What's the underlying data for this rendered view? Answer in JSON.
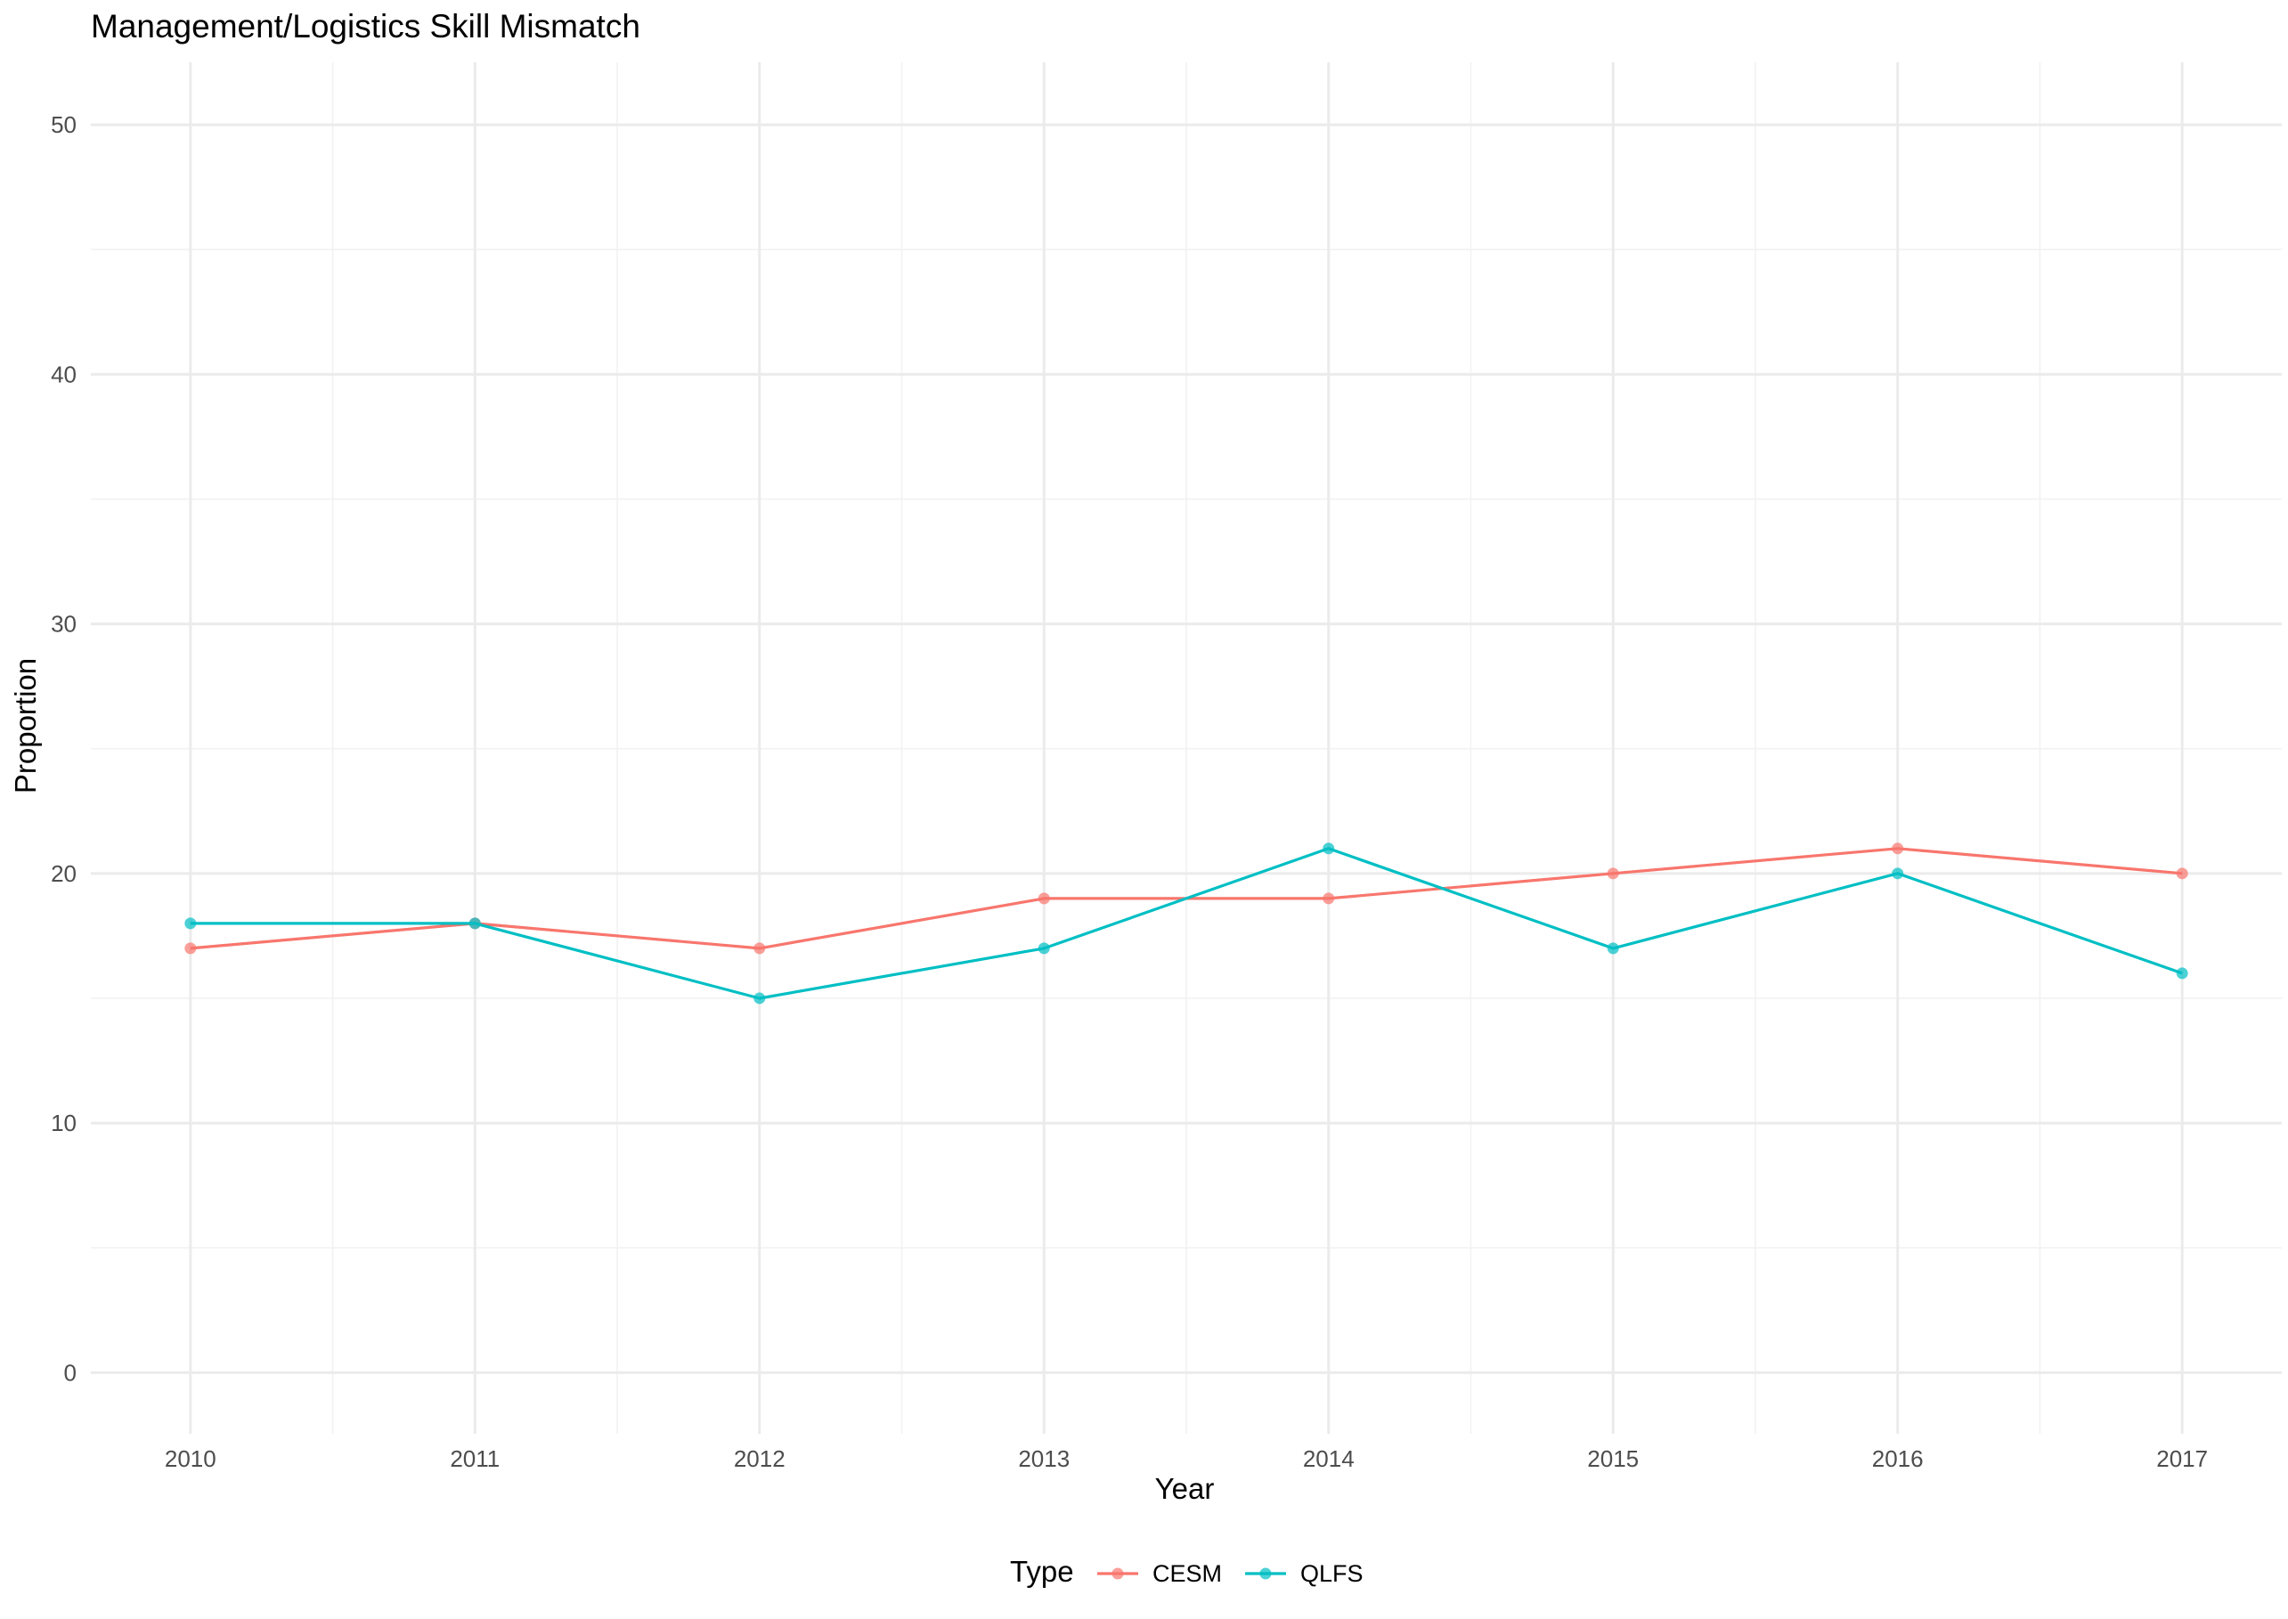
{
  "chart_data": {
    "type": "line",
    "title": "Management/Logistics Skill Mismatch",
    "xlabel": "Year",
    "ylabel": "Proportion",
    "x": [
      2010,
      2011,
      2012,
      2013,
      2014,
      2015,
      2016,
      2017
    ],
    "x_ticks": [
      "2010",
      "2011",
      "2012",
      "2013",
      "2014",
      "2015",
      "2016",
      "2017"
    ],
    "y_ticks": [
      "0",
      "10",
      "20",
      "30",
      "40",
      "50"
    ],
    "ylim": [
      0,
      50
    ],
    "grid": true,
    "legend": {
      "title": "Type",
      "position": "bottom"
    },
    "series": [
      {
        "name": "CESM",
        "color": "#F8766D",
        "values": [
          17,
          18,
          17,
          19,
          19,
          20,
          21,
          20
        ]
      },
      {
        "name": "QLFS",
        "color": "#00BFC4",
        "values": [
          18,
          18,
          15,
          17,
          21,
          17,
          20,
          16
        ]
      }
    ]
  }
}
